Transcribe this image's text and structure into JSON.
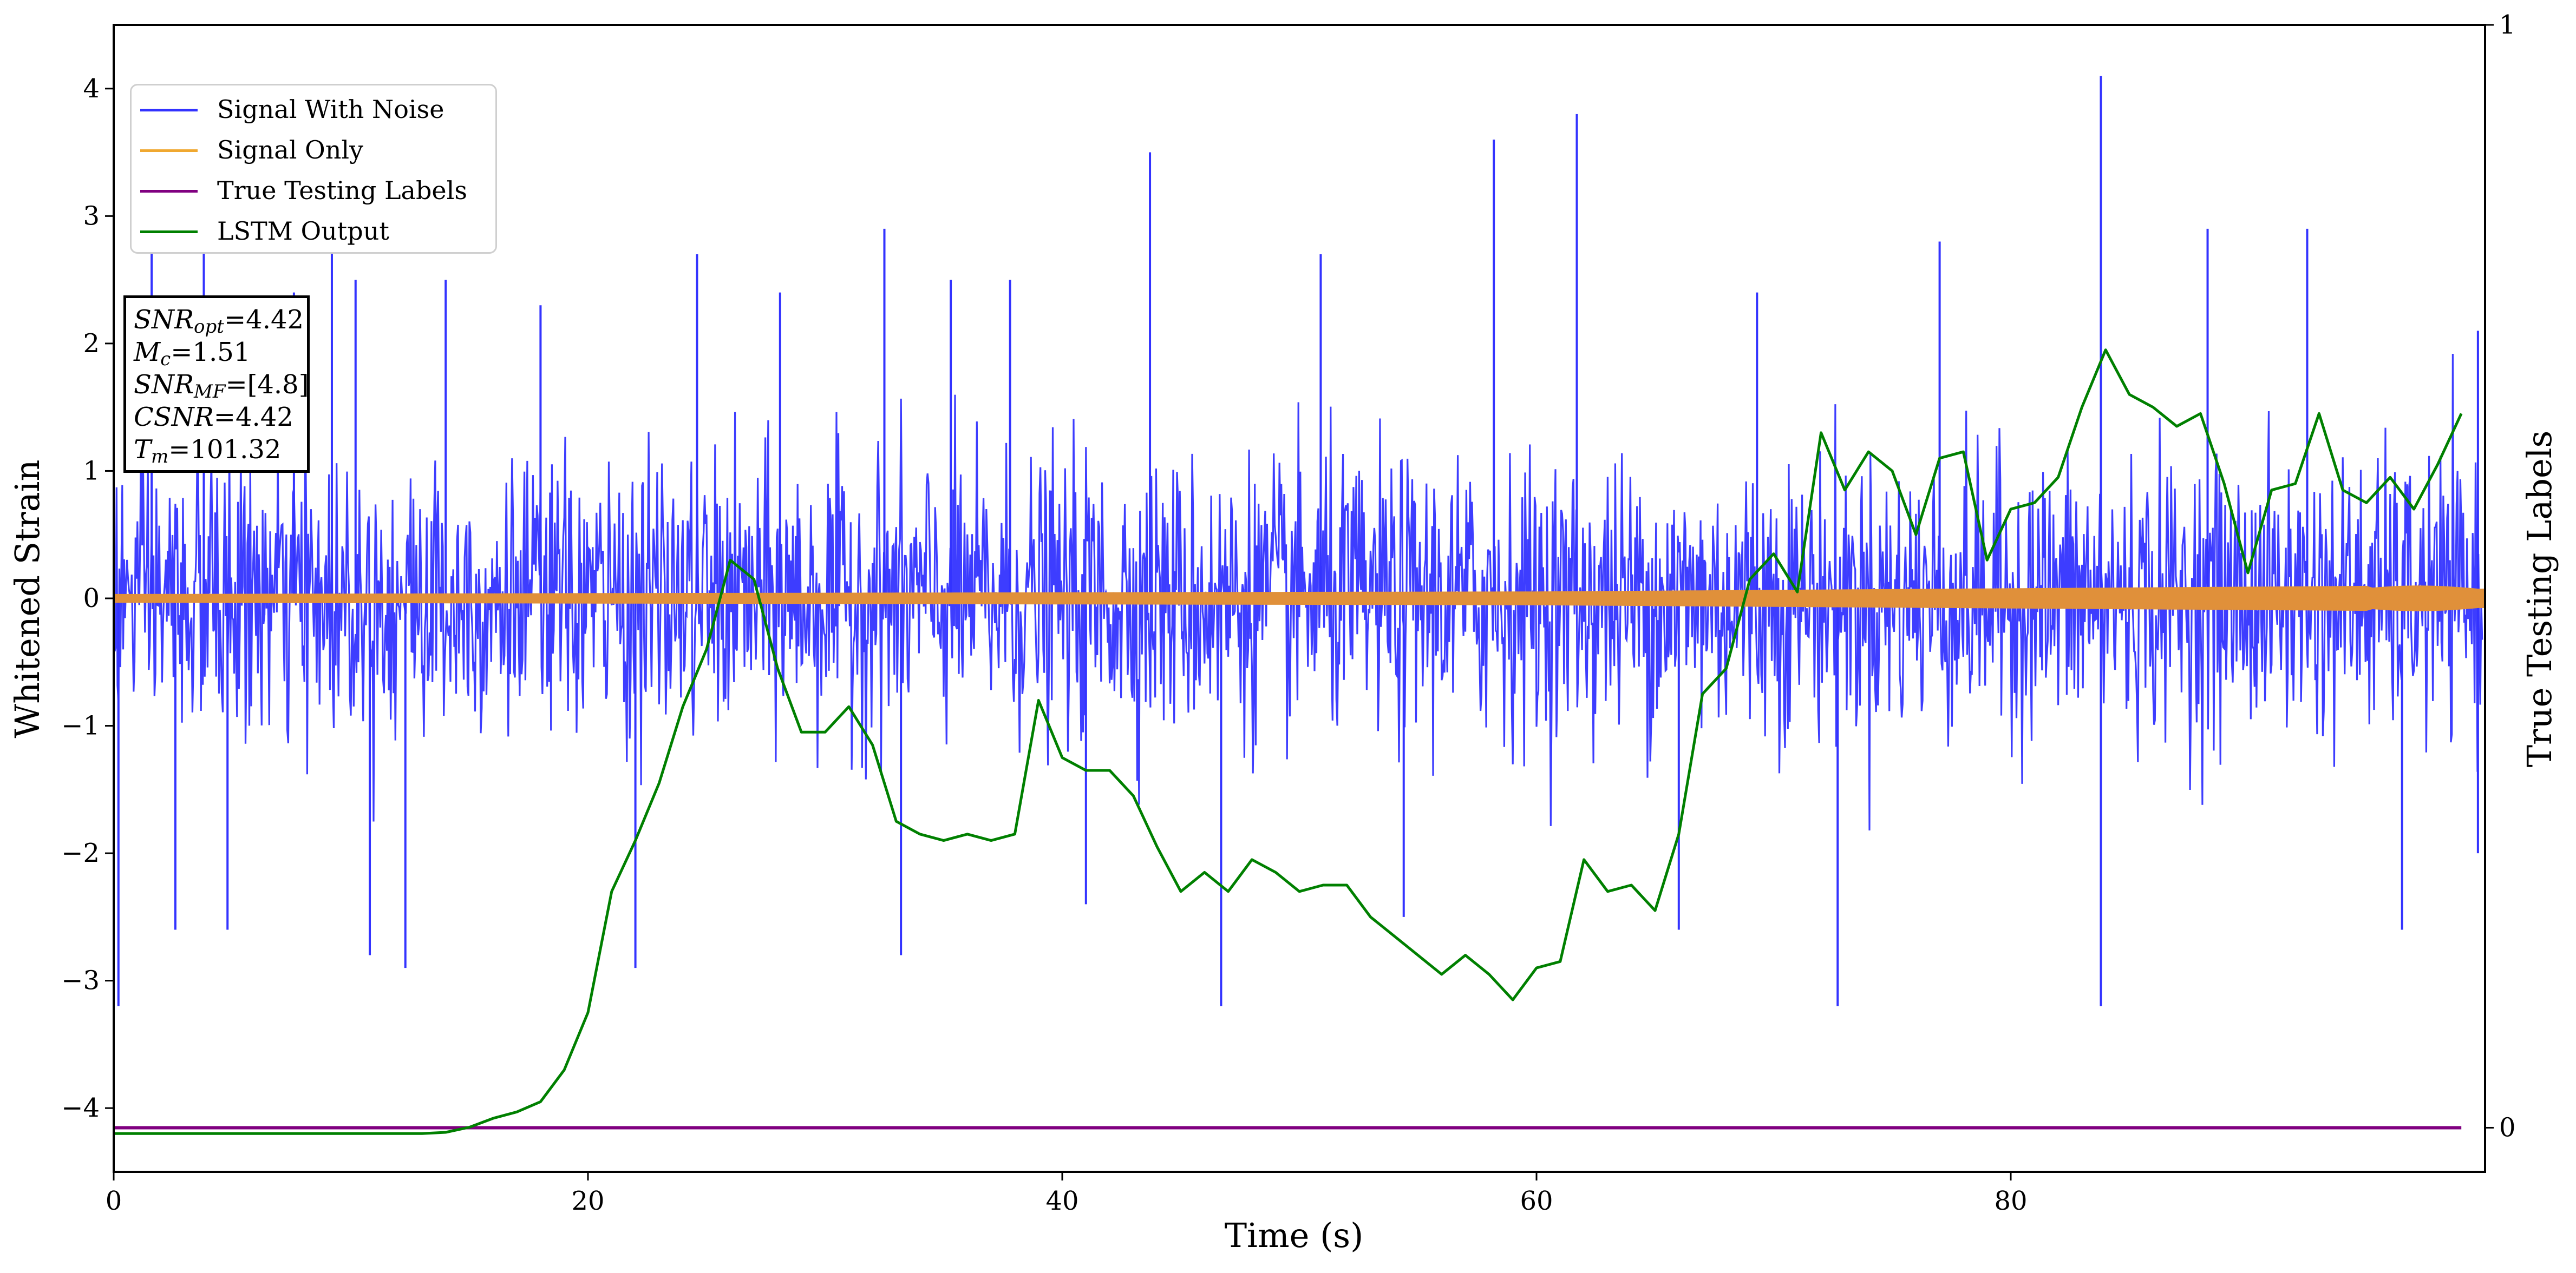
{
  "chart_data": {
    "type": "line",
    "xlabel": "Time (s)",
    "ylabel": "Whitened Strain",
    "y2label": "True Testing Labels",
    "xlim": [
      0,
      100
    ],
    "ylim": [
      -4.5,
      4.5
    ],
    "y2lim": [
      -0.04,
      1.0
    ],
    "xticks": [
      "0",
      "20",
      "40",
      "60",
      "80"
    ],
    "xtick_values": [
      0,
      20,
      40,
      60,
      80
    ],
    "yticks": [
      "−4",
      "−3",
      "−2",
      "−1",
      "0",
      "1",
      "2",
      "3",
      "4"
    ],
    "ytick_values": [
      -4,
      -3,
      -2,
      -1,
      0,
      1,
      2,
      3,
      4
    ],
    "y2ticks": [
      "0",
      "1"
    ],
    "y2tick_values": [
      0,
      1
    ],
    "grid": false,
    "legend_placement": "upper-left",
    "series": [
      {
        "name": "Signal With Noise",
        "color": "#3333ff",
        "axis": "left",
        "kind": "noise",
        "typical_band": [
          -1.4,
          1.4
        ],
        "peaks": [
          {
            "x": 0.2,
            "y": -3.2
          },
          {
            "x": 1.6,
            "y": 2.9
          },
          {
            "x": 2.6,
            "y": -2.6
          },
          {
            "x": 3.8,
            "y": 3.1
          },
          {
            "x": 4.8,
            "y": -2.6
          },
          {
            "x": 7.6,
            "y": 2.4
          },
          {
            "x": 9.2,
            "y": 2.9
          },
          {
            "x": 10.2,
            "y": 2.5
          },
          {
            "x": 10.8,
            "y": -2.8
          },
          {
            "x": 12.3,
            "y": -2.9
          },
          {
            "x": 14.0,
            "y": 2.5
          },
          {
            "x": 18.0,
            "y": 2.3
          },
          {
            "x": 22.0,
            "y": -2.9
          },
          {
            "x": 24.6,
            "y": 2.7
          },
          {
            "x": 28.1,
            "y": 2.4
          },
          {
            "x": 32.5,
            "y": 2.9
          },
          {
            "x": 33.2,
            "y": -2.8
          },
          {
            "x": 35.3,
            "y": 2.5
          },
          {
            "x": 37.8,
            "y": 2.5
          },
          {
            "x": 41.0,
            "y": -2.4
          },
          {
            "x": 43.7,
            "y": 3.5
          },
          {
            "x": 46.7,
            "y": -3.2
          },
          {
            "x": 50.9,
            "y": 2.7
          },
          {
            "x": 54.4,
            "y": -2.5
          },
          {
            "x": 58.2,
            "y": 3.6
          },
          {
            "x": 61.7,
            "y": 3.8
          },
          {
            "x": 66.0,
            "y": -2.6
          },
          {
            "x": 69.3,
            "y": 2.4
          },
          {
            "x": 72.7,
            "y": -3.2
          },
          {
            "x": 77.0,
            "y": 2.8
          },
          {
            "x": 83.8,
            "y": 4.1
          },
          {
            "x": 83.8,
            "y": -3.2
          },
          {
            "x": 88.3,
            "y": 2.9
          },
          {
            "x": 92.5,
            "y": 2.9
          },
          {
            "x": 96.5,
            "y": -2.6
          },
          {
            "x": 99.7,
            "y": 2.1
          },
          {
            "x": 99.7,
            "y": -2.0
          }
        ]
      },
      {
        "name": "Signal Only",
        "color": "#f0a830",
        "axis": "left",
        "kind": "chirp",
        "amplitude": [
          {
            "x": 0,
            "y": 0.03
          },
          {
            "x": 60,
            "y": 0.05
          },
          {
            "x": 100,
            "y": 0.1
          }
        ]
      },
      {
        "name": "True Testing Labels",
        "color": "#800080",
        "axis": "right",
        "x": [
          0,
          99
        ],
        "values": [
          0,
          0
        ]
      },
      {
        "name": "LSTM Output",
        "color": "#008000",
        "axis": "left",
        "x": [
          0,
          13,
          14,
          15,
          16,
          17,
          18,
          19,
          20,
          21,
          22,
          23,
          24,
          25,
          26,
          27,
          28,
          29,
          30,
          31,
          32,
          33,
          34,
          35,
          36,
          37,
          38,
          39,
          40,
          41,
          42,
          43,
          44,
          45,
          46,
          47,
          48,
          49,
          50,
          51,
          52,
          53,
          54,
          55,
          56,
          57,
          58,
          59,
          60,
          61,
          62,
          63,
          64,
          65,
          66,
          67,
          68,
          69,
          70,
          71,
          72,
          73,
          74,
          75,
          76,
          77,
          78,
          79,
          80,
          81,
          82,
          83,
          84,
          85,
          86,
          87,
          88,
          89,
          90,
          91,
          92,
          93,
          94,
          95,
          96,
          97,
          98,
          99
        ],
        "values": [
          -4.2,
          -4.2,
          -4.19,
          -4.15,
          -4.08,
          -4.03,
          -3.95,
          -3.7,
          -3.25,
          -2.3,
          -1.9,
          -1.45,
          -0.85,
          -0.4,
          0.3,
          0.15,
          -0.55,
          -1.05,
          -1.05,
          -0.85,
          -1.15,
          -1.75,
          -1.85,
          -1.9,
          -1.85,
          -1.9,
          -1.85,
          -0.8,
          -1.25,
          -1.35,
          -1.35,
          -1.55,
          -1.95,
          -2.3,
          -2.15,
          -2.3,
          -2.05,
          -2.15,
          -2.3,
          -2.25,
          -2.25,
          -2.5,
          -2.65,
          -2.8,
          -2.95,
          -2.8,
          -2.95,
          -3.15,
          -2.9,
          -2.85,
          -2.05,
          -2.3,
          -2.25,
          -2.45,
          -1.85,
          -0.75,
          -0.55,
          0.15,
          0.35,
          0.05,
          1.3,
          0.85,
          1.15,
          1.0,
          0.5,
          1.1,
          1.15,
          0.3,
          0.7,
          0.75,
          0.95,
          1.5,
          1.95,
          1.6,
          1.5,
          1.35,
          1.45,
          0.9,
          0.2,
          0.85,
          0.9,
          1.45,
          0.85,
          0.75,
          0.95,
          0.7,
          1.05,
          1.45
        ]
      }
    ]
  },
  "annotation": {
    "lines": [
      {
        "sym": "SNR",
        "sub": "opt",
        "text": "=4.42"
      },
      {
        "sym": "M",
        "sub": "c",
        "text": "=1.51"
      },
      {
        "sym": "SNR",
        "sub": "MF",
        "text": "=[4.8]"
      },
      {
        "sym": "CSNR",
        "sub": "",
        "text": "=4.42"
      },
      {
        "sym": "T",
        "sub": "m",
        "text": "=101.32"
      }
    ]
  }
}
